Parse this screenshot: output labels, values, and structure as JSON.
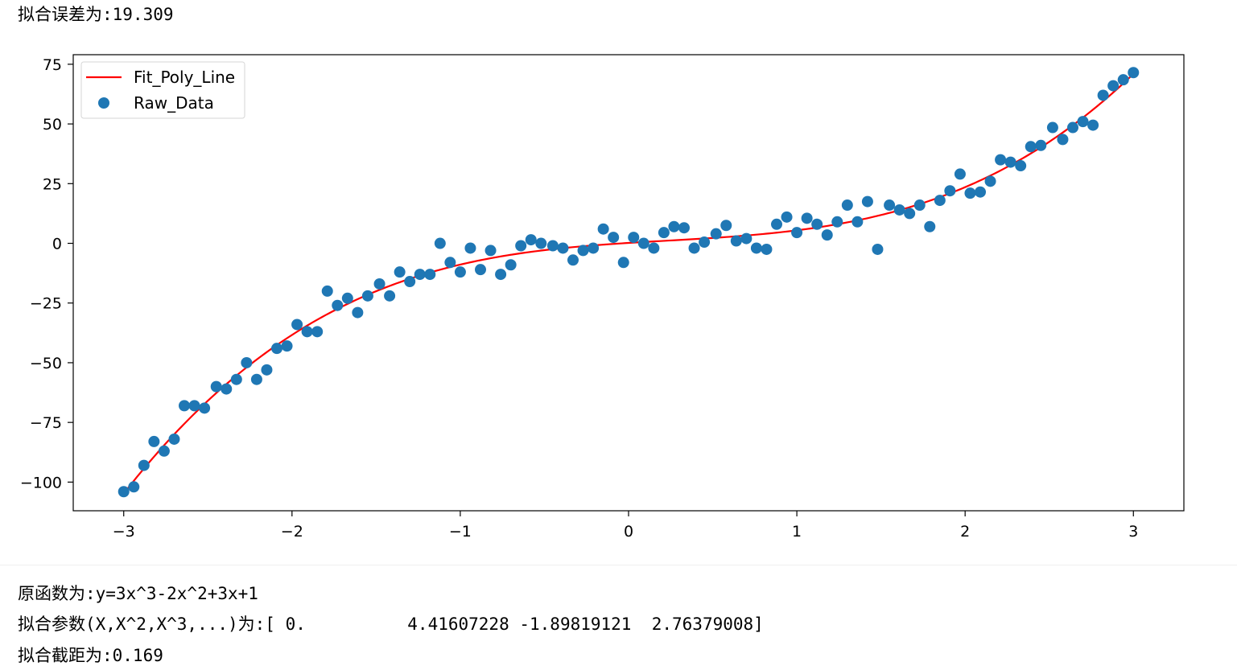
{
  "output": {
    "fit_error": "拟合误差为:19.309",
    "original_function": "原函数为:y=3x^3-2x^2+3x+1",
    "fit_params": "拟合参数(X,X^2,X^3,...)为:[ 0.          4.41607228 -1.89819121  2.76379008]",
    "intercept": "拟合截距为:0.169"
  },
  "colors": {
    "fit_line": "#ff0000",
    "raw_points": "#1f77b4"
  },
  "chart_data": {
    "type": "scatter",
    "title": "",
    "xlabel": "",
    "ylabel": "",
    "xlim": [
      -3.3,
      3.3
    ],
    "ylim": [
      -112,
      79
    ],
    "xticks": [
      -3,
      -2,
      -1,
      0,
      1,
      2,
      3
    ],
    "xtick_labels": [
      "−3",
      "−2",
      "−1",
      "0",
      "1",
      "2",
      "3"
    ],
    "yticks": [
      75,
      50,
      25,
      0,
      -25,
      -50,
      -75,
      -100
    ],
    "ytick_labels": [
      "75",
      "50",
      "25",
      "0",
      "−25",
      "−50",
      "−75",
      "−100"
    ],
    "grid": false,
    "legend_position": "top-left",
    "series": [
      {
        "name": "Fit_Poly_Line",
        "kind": "line",
        "color": "#ff0000",
        "coefficients": {
          "x3": 2.76379008,
          "x2": -1.89819121,
          "x1": 4.41607228,
          "x0": 0.169
        },
        "x_range": [
          -3,
          3
        ]
      },
      {
        "name": "Raw_Data",
        "kind": "scatter",
        "color": "#1f77b4",
        "x": [
          -3.0,
          -2.94,
          -2.88,
          -2.82,
          -2.76,
          -2.7,
          -2.64,
          -2.58,
          -2.52,
          -2.45,
          -2.39,
          -2.33,
          -2.27,
          -2.21,
          -2.15,
          -2.09,
          -2.03,
          -1.97,
          -1.91,
          -1.85,
          -1.79,
          -1.73,
          -1.67,
          -1.61,
          -1.55,
          -1.48,
          -1.42,
          -1.36,
          -1.3,
          -1.24,
          -1.18,
          -1.12,
          -1.06,
          -1.0,
          -0.94,
          -0.88,
          -0.82,
          -0.76,
          -0.7,
          -0.64,
          -0.58,
          -0.52,
          -0.45,
          -0.39,
          -0.33,
          -0.27,
          -0.21,
          -0.15,
          -0.09,
          -0.03,
          0.03,
          0.09,
          0.15,
          0.21,
          0.27,
          0.33,
          0.39,
          0.45,
          0.52,
          0.58,
          0.64,
          0.7,
          0.76,
          0.82,
          0.88,
          0.94,
          1.0,
          1.06,
          1.12,
          1.18,
          1.24,
          1.3,
          1.36,
          1.42,
          1.48,
          1.55,
          1.61,
          1.67,
          1.73,
          1.79,
          1.85,
          1.91,
          1.97,
          2.03,
          2.09,
          2.15,
          2.21,
          2.27,
          2.33,
          2.39,
          2.45,
          2.52,
          2.58,
          2.64,
          2.7,
          2.76,
          2.82,
          2.88,
          2.94,
          3.0
        ],
        "y": [
          -104,
          -102,
          -93,
          -83,
          -87,
          -82,
          -68,
          -68,
          -69,
          -60,
          -61,
          -57,
          -50,
          -57,
          -53,
          -44,
          -43,
          -34,
          -37,
          -37,
          -20,
          -26,
          -23,
          -29,
          -22,
          -17,
          -22,
          -12,
          -16,
          -13,
          -13,
          0,
          -8,
          -12,
          -2,
          -11,
          -3,
          -13,
          -9,
          -1,
          1.5,
          0,
          -1,
          -2,
          -7,
          -3,
          -2,
          6,
          2.5,
          -8,
          2.5,
          0,
          -2,
          4.5,
          7,
          6.5,
          -2,
          0.5,
          4,
          7.5,
          1,
          2,
          -2,
          -2.5,
          8,
          11,
          4.5,
          10.5,
          8,
          3.5,
          9,
          16,
          9,
          17.5,
          -2.5,
          16,
          14,
          12.5,
          16,
          7,
          18,
          22,
          29,
          21,
          21.5,
          26,
          35,
          34,
          32.5,
          40.5,
          41,
          48.5,
          43.5,
          48.5,
          51,
          49.5,
          62,
          66,
          68.5,
          71.5
        ]
      }
    ]
  }
}
